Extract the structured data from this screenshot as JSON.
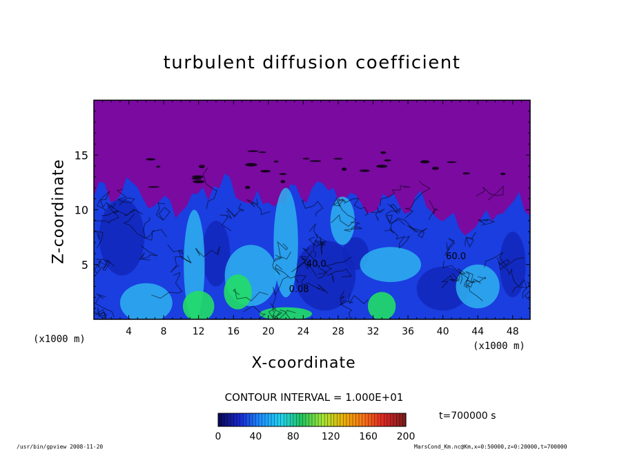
{
  "chart_data": {
    "type": "heatmap",
    "title": "turbulent diffusion coefficient",
    "xlabel": "X-coordinate",
    "ylabel": "Z-coordinate",
    "x_unit_label": "(x1000 m)",
    "y_unit_label": "(x1000 m)",
    "xlim": [
      0,
      50
    ],
    "ylim": [
      0,
      20
    ],
    "x_ticks": [
      4,
      8,
      12,
      16,
      20,
      24,
      28,
      32,
      36,
      40,
      44,
      48
    ],
    "y_ticks": [
      5,
      10,
      15
    ],
    "contour_interval_text": "CONTOUR INTERVAL = 1.000E+01",
    "contour_labels": [
      {
        "text": "40.0",
        "x": 25.5,
        "z": 4.8
      },
      {
        "text": "60.0",
        "x": 41.5,
        "z": 5.5
      },
      {
        "text": "0.08",
        "x": 23.5,
        "z": 2.5
      }
    ],
    "colorbar": {
      "min": 0,
      "max": 200,
      "ticks": [
        0,
        40,
        80,
        120,
        160,
        200
      ],
      "colors": [
        "#0a0a5a",
        "#1a2ad2",
        "#1e90ff",
        "#22d3ee",
        "#22c55e",
        "#a3e635",
        "#eab308",
        "#f97316",
        "#dc2626",
        "#7f1d1d"
      ]
    },
    "colors": {
      "top_layer": "#7a0aa0",
      "convective_layer": "#1a3ee0",
      "boundary_layer": "#2fb2ee",
      "hot_spot": "#22dd66"
    },
    "time_label": "t=700000 s"
  },
  "footer": {
    "left": "/usr/bin/gpview  2008-11-20",
    "right": "MarsCond_Km.nc@Km,x=0:50000,z=0:20000,t=700000"
  }
}
